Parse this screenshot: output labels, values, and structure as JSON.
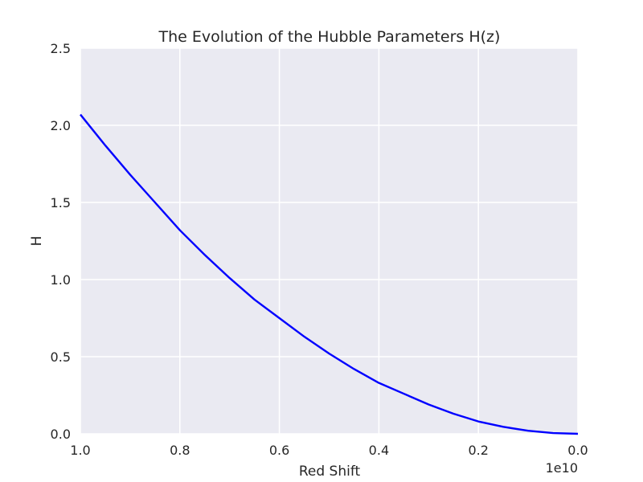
{
  "chart_data": {
    "type": "line",
    "title": "The Evolution of the Hubble Parameters H(z)",
    "xlabel": "Red Shift",
    "ylabel": "H",
    "x_offset_label": "1e10",
    "x_multiplier": 10000000000,
    "xlim": [
      1.0,
      0.0
    ],
    "ylim": [
      0.0,
      2.5
    ],
    "x_inverted": true,
    "grid": true,
    "background": "#eaeaf2",
    "grid_color": "#ffffff",
    "line_color": "#0000ff",
    "x_ticks": [
      {
        "value": 1.0,
        "label": "1.0"
      },
      {
        "value": 0.8,
        "label": "0.8"
      },
      {
        "value": 0.6,
        "label": "0.6"
      },
      {
        "value": 0.4,
        "label": "0.4"
      },
      {
        "value": 0.2,
        "label": "0.2"
      },
      {
        "value": 0.0,
        "label": "0.0"
      }
    ],
    "y_ticks": [
      {
        "value": 0.0,
        "label": "0.0"
      },
      {
        "value": 0.5,
        "label": "0.5"
      },
      {
        "value": 1.0,
        "label": "1.0"
      },
      {
        "value": 1.5,
        "label": "1.5"
      },
      {
        "value": 2.0,
        "label": "2.0"
      },
      {
        "value": 2.5,
        "label": "2.5"
      }
    ],
    "series": [
      {
        "x": [
          1.0,
          0.95,
          0.9,
          0.85,
          0.8,
          0.75,
          0.7,
          0.65,
          0.6,
          0.55,
          0.5,
          0.45,
          0.4,
          0.35,
          0.3,
          0.25,
          0.2,
          0.15,
          0.1,
          0.05,
          0.0
        ],
        "y": [
          2.07,
          1.87,
          1.68,
          1.5,
          1.32,
          1.16,
          1.01,
          0.87,
          0.75,
          0.63,
          0.52,
          0.42,
          0.33,
          0.26,
          0.19,
          0.13,
          0.08,
          0.045,
          0.02,
          0.005,
          0.0
        ]
      }
    ]
  }
}
